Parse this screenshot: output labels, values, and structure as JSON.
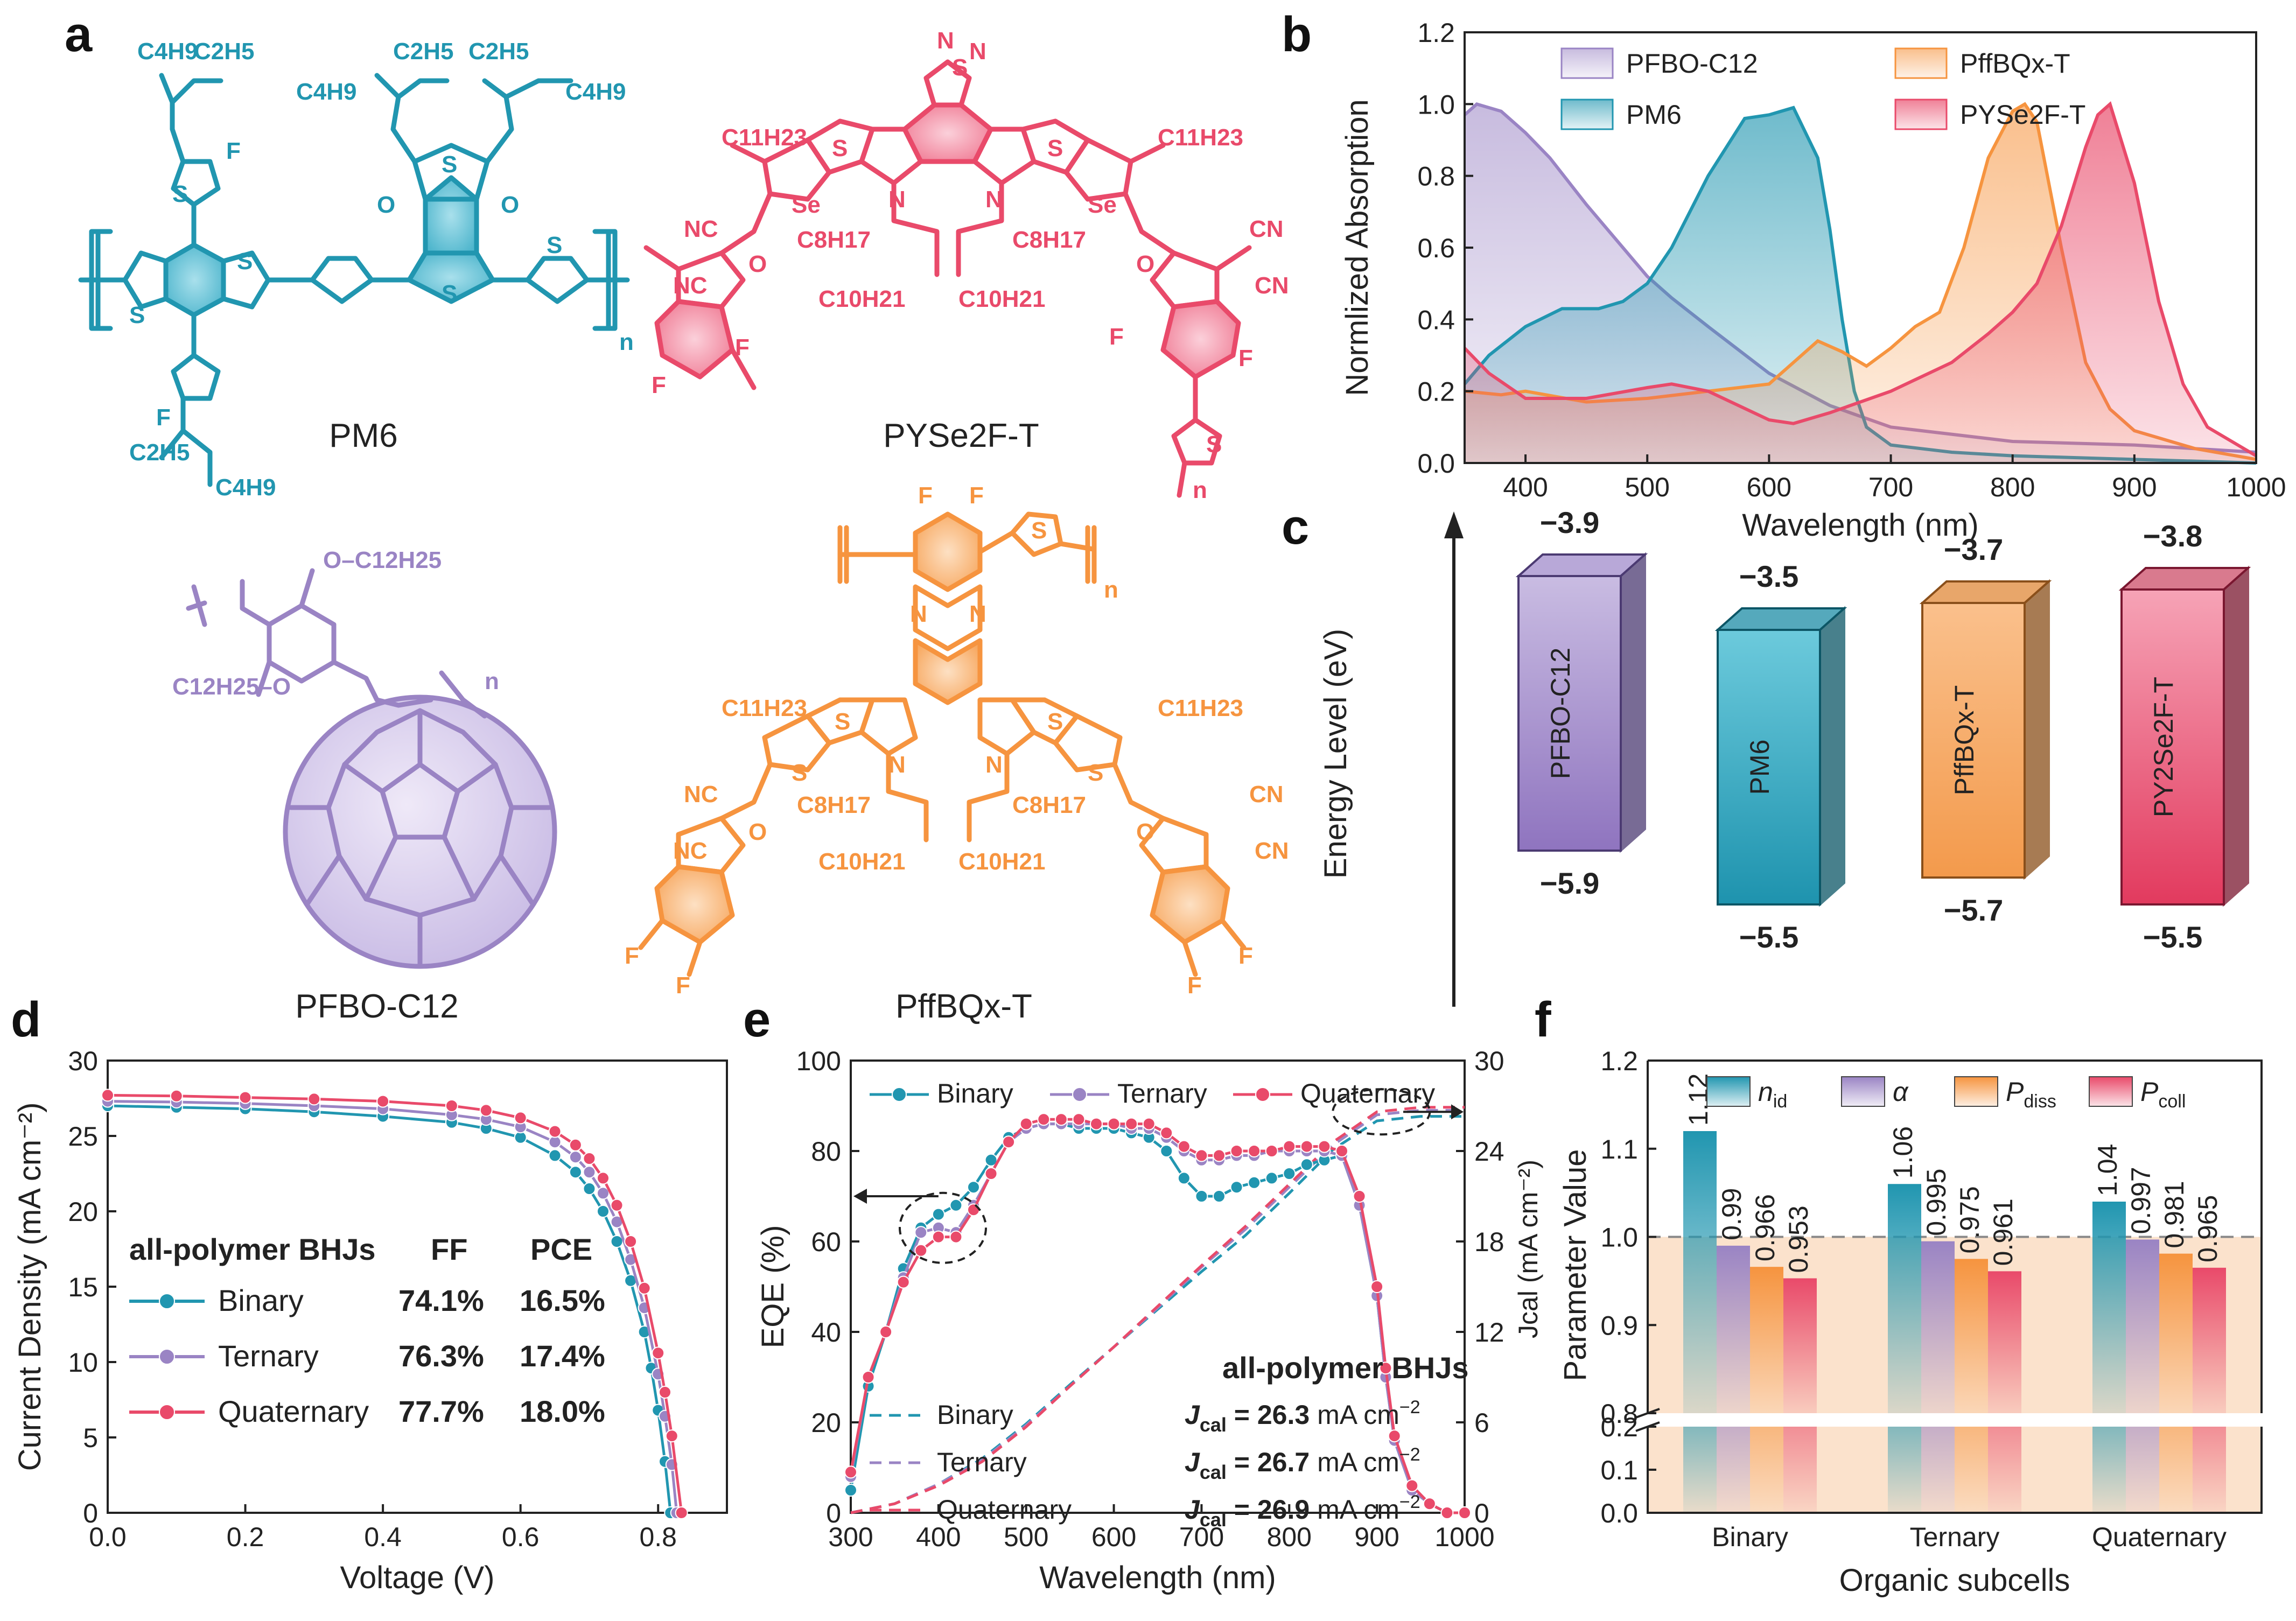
{
  "colors": {
    "pm6": "#2196B0",
    "pyse2f": "#E94A6A",
    "pffbqx": "#F6943F",
    "pfbo": "#9A84C4",
    "text": "#222222"
  },
  "panel_a": {
    "label": "a",
    "names": [
      "PM6",
      "PYSe2F-T",
      "PFBO-C12",
      "PffBQx-T"
    ],
    "pm6_subs": [
      "C4H9",
      "C2H5",
      "C2H5",
      "C2H5",
      "C4H9",
      "C4H9",
      "C2H5",
      "C4H9",
      "F",
      "F",
      "S",
      "S",
      "S",
      "S",
      "S",
      "S",
      "O",
      "O",
      "n"
    ],
    "pyse_subs": [
      "N",
      "S",
      "N",
      "C11H23",
      "C11H23",
      "S",
      "S",
      "Se",
      "Se",
      "N",
      "N",
      "C8H17",
      "C8H17",
      "C10H21",
      "C10H21",
      "NC",
      "NC",
      "CN",
      "CN",
      "O",
      "O",
      "F",
      "F",
      "F",
      "F",
      "S",
      "n"
    ],
    "pfbo_subs": [
      "O–C12H25",
      "C12H25–O",
      "n"
    ],
    "pffbqx_subs": [
      "F",
      "F",
      "S",
      "n",
      "N",
      "N",
      "C11H23",
      "C11H23",
      "S",
      "S",
      "S",
      "S",
      "N",
      "N",
      "C8H17",
      "C8H17",
      "C10H21",
      "C10H21",
      "NC",
      "NC",
      "CN",
      "CN",
      "O",
      "O",
      "F",
      "F",
      "F",
      "F"
    ]
  },
  "chart_data": [
    {
      "panel": "b",
      "type": "area",
      "xlabel": "Wavelength (nm)",
      "ylabel": "Normlized Absorption",
      "xlim": [
        350,
        1000
      ],
      "ylim": [
        0.0,
        1.2
      ],
      "xticks": [
        "400",
        "500",
        "600",
        "700",
        "800",
        "900",
        "1000"
      ],
      "yticks": [
        "0.0",
        "0.2",
        "0.4",
        "0.6",
        "0.8",
        "1.0",
        "1.2"
      ],
      "series": [
        {
          "name": "PFBO-C12",
          "x": [
            350,
            360,
            380,
            400,
            420,
            450,
            480,
            500,
            520,
            550,
            600,
            650,
            700,
            800,
            900,
            1000
          ],
          "y": [
            0.97,
            1.0,
            0.98,
            0.92,
            0.85,
            0.72,
            0.6,
            0.52,
            0.46,
            0.38,
            0.25,
            0.16,
            0.1,
            0.06,
            0.05,
            0.03
          ]
        },
        {
          "name": "PM6",
          "x": [
            350,
            370,
            400,
            430,
            460,
            480,
            500,
            520,
            550,
            580,
            600,
            620,
            640,
            650,
            660,
            670,
            680,
            700,
            750,
            800,
            900,
            1000
          ],
          "y": [
            0.22,
            0.3,
            0.38,
            0.43,
            0.43,
            0.45,
            0.5,
            0.6,
            0.8,
            0.96,
            0.97,
            0.99,
            0.85,
            0.65,
            0.4,
            0.2,
            0.1,
            0.05,
            0.03,
            0.02,
            0.01,
            0.0
          ]
        },
        {
          "name": "PffBQx-T",
          "x": [
            350,
            380,
            400,
            450,
            500,
            550,
            600,
            620,
            640,
            660,
            680,
            700,
            720,
            740,
            760,
            780,
            800,
            810,
            820,
            840,
            860,
            880,
            900,
            950,
            1000
          ],
          "y": [
            0.2,
            0.19,
            0.2,
            0.17,
            0.18,
            0.2,
            0.22,
            0.28,
            0.34,
            0.31,
            0.27,
            0.32,
            0.38,
            0.42,
            0.6,
            0.85,
            0.98,
            1.0,
            0.95,
            0.6,
            0.28,
            0.15,
            0.09,
            0.04,
            0.01
          ]
        },
        {
          "name": "PYSe2F-T",
          "x": [
            350,
            370,
            400,
            450,
            500,
            520,
            550,
            600,
            620,
            650,
            700,
            750,
            780,
            800,
            820,
            840,
            860,
            870,
            880,
            900,
            920,
            940,
            960,
            1000
          ],
          "y": [
            0.32,
            0.25,
            0.18,
            0.18,
            0.21,
            0.22,
            0.2,
            0.12,
            0.11,
            0.14,
            0.2,
            0.28,
            0.36,
            0.42,
            0.5,
            0.66,
            0.88,
            0.97,
            1.0,
            0.78,
            0.45,
            0.22,
            0.1,
            0.02
          ]
        }
      ]
    },
    {
      "panel": "c",
      "type": "bar",
      "ylabel": "Energy Level (eV)",
      "materials": [
        "PFBO-C12",
        "PM6",
        "PffBQx-T",
        "PY2Se2F-T"
      ],
      "lumo": [
        -3.9,
        -3.5,
        -3.7,
        -3.8
      ],
      "homo": [
        -5.9,
        -5.5,
        -5.7,
        -5.5
      ],
      "lumo_labels": [
        "−3.9",
        "−3.5",
        "−3.7",
        "−3.8"
      ],
      "homo_labels": [
        "−5.9",
        "−5.5",
        "−5.7",
        "−5.5"
      ]
    },
    {
      "panel": "d",
      "type": "line",
      "xlabel": "Voltage (V)",
      "ylabel": "Current Density (mA cm⁻²)",
      "xlim": [
        0.0,
        0.9
      ],
      "ylim": [
        0,
        30
      ],
      "xticks": [
        "0.0",
        "0.2",
        "0.4",
        "0.6",
        "0.8"
      ],
      "yticks": [
        "0",
        "5",
        "10",
        "15",
        "20",
        "25",
        "30"
      ],
      "table_title": "all-polymer BHJs",
      "table_headers": [
        "FF",
        "PCE"
      ],
      "series": [
        {
          "name": "Binary",
          "ff": "74.1%",
          "pce": "16.5%",
          "jsc": 27.0,
          "voc": 0.818,
          "x": [
            0,
            0.1,
            0.2,
            0.3,
            0.4,
            0.5,
            0.55,
            0.6,
            0.65,
            0.68,
            0.7,
            0.72,
            0.74,
            0.76,
            0.78,
            0.79,
            0.8,
            0.81,
            0.818
          ],
          "y": [
            27.0,
            26.9,
            26.8,
            26.6,
            26.3,
            25.9,
            25.5,
            24.9,
            23.7,
            22.6,
            21.5,
            20.0,
            18.0,
            15.4,
            12.0,
            9.6,
            6.8,
            3.4,
            0.0
          ]
        },
        {
          "name": "Ternary",
          "ff": "76.3%",
          "pce": "17.4%",
          "jsc": 27.3,
          "voc": 0.827,
          "x": [
            0,
            0.1,
            0.2,
            0.3,
            0.4,
            0.5,
            0.55,
            0.6,
            0.65,
            0.68,
            0.7,
            0.72,
            0.74,
            0.76,
            0.78,
            0.8,
            0.81,
            0.82,
            0.827
          ],
          "y": [
            27.3,
            27.25,
            27.15,
            27.0,
            26.8,
            26.4,
            26.1,
            25.6,
            24.6,
            23.6,
            22.6,
            21.2,
            19.3,
            16.8,
            13.6,
            9.2,
            6.4,
            3.2,
            0.0
          ]
        },
        {
          "name": "Quaternary",
          "ff": "77.7%",
          "pce": "18.0%",
          "jsc": 27.7,
          "voc": 0.834,
          "x": [
            0,
            0.1,
            0.2,
            0.3,
            0.4,
            0.5,
            0.55,
            0.6,
            0.65,
            0.68,
            0.7,
            0.72,
            0.74,
            0.76,
            0.78,
            0.8,
            0.81,
            0.82,
            0.834
          ],
          "y": [
            27.7,
            27.65,
            27.55,
            27.45,
            27.3,
            27.0,
            26.7,
            26.2,
            25.3,
            24.4,
            23.5,
            22.2,
            20.4,
            18.0,
            14.9,
            10.6,
            8.0,
            5.1,
            0.0
          ]
        }
      ]
    },
    {
      "panel": "e",
      "type": "line",
      "xlabel": "Wavelength (nm)",
      "ylabel": "EQE (%)",
      "y2label": "Jcal (mA cm⁻²)",
      "xlim": [
        300,
        1000
      ],
      "ylim": [
        0,
        100
      ],
      "y2lim": [
        0,
        30
      ],
      "xticks": [
        "300",
        "400",
        "500",
        "600",
        "700",
        "800",
        "900",
        "1000"
      ],
      "yticks": [
        "0",
        "20",
        "40",
        "60",
        "80",
        "100"
      ],
      "y2ticks": [
        "0",
        "6",
        "12",
        "18",
        "24",
        "30"
      ],
      "annotation_title": "all-polymer BHJs",
      "jcal_label": "J",
      "jcal_sub": "cal",
      "jcal_unit": "mA cm",
      "jcal_exp": "−2",
      "series": [
        {
          "name": "Binary",
          "jcal": "= 26.3",
          "x": [
            300,
            320,
            340,
            360,
            380,
            400,
            420,
            440,
            460,
            480,
            500,
            520,
            540,
            560,
            580,
            600,
            620,
            640,
            660,
            680,
            700,
            720,
            740,
            760,
            780,
            800,
            820,
            840,
            860,
            880,
            900,
            910,
            920,
            940,
            960,
            980,
            1000
          ],
          "y": [
            5,
            28,
            40,
            54,
            63,
            66,
            68,
            72,
            78,
            83,
            85,
            86,
            86,
            85,
            85,
            85,
            84,
            83,
            80,
            74,
            70,
            70,
            72,
            73,
            74,
            75,
            77,
            78,
            79,
            68,
            48,
            30,
            16,
            5,
            2,
            0,
            0
          ]
        },
        {
          "name": "Ternary",
          "jcal": "= 26.7",
          "x": [
            300,
            320,
            340,
            360,
            380,
            400,
            420,
            440,
            460,
            480,
            500,
            520,
            540,
            560,
            580,
            600,
            620,
            640,
            660,
            680,
            700,
            720,
            740,
            760,
            780,
            800,
            820,
            840,
            860,
            880,
            900,
            910,
            920,
            940,
            960,
            980,
            1000
          ],
          "y": [
            8,
            30,
            40,
            52,
            62,
            63,
            62,
            68,
            75,
            82,
            85,
            86,
            86,
            86,
            86,
            86,
            85,
            85,
            83,
            80,
            78,
            78,
            79,
            79,
            80,
            80,
            80,
            80,
            79,
            68,
            48,
            30,
            16,
            5,
            2,
            0,
            0
          ]
        },
        {
          "name": "Quaternary",
          "jcal": "= 26.9",
          "x": [
            300,
            320,
            340,
            360,
            380,
            400,
            420,
            440,
            460,
            480,
            500,
            520,
            540,
            560,
            580,
            600,
            620,
            640,
            660,
            680,
            700,
            720,
            740,
            760,
            780,
            800,
            820,
            840,
            860,
            880,
            900,
            910,
            920,
            940,
            960,
            980,
            1000
          ],
          "y": [
            9,
            30,
            40,
            51,
            58,
            61,
            61,
            67,
            75,
            82,
            86,
            87,
            87,
            87,
            86,
            86,
            86,
            86,
            84,
            81,
            79,
            79,
            80,
            80,
            80,
            81,
            81,
            81,
            80,
            70,
            50,
            32,
            17,
            6,
            2,
            0,
            0
          ]
        }
      ],
      "jcal_curves": [
        {
          "name": "Binary",
          "x": [
            300,
            350,
            400,
            450,
            500,
            550,
            600,
            650,
            700,
            750,
            800,
            850,
            900,
            950,
            1000
          ],
          "y": [
            0,
            0.6,
            1.9,
            3.6,
            5.9,
            8.5,
            11.0,
            13.5,
            16.0,
            18.4,
            21.2,
            24.1,
            26.0,
            26.3,
            26.3
          ]
        },
        {
          "name": "Ternary",
          "x": [
            300,
            350,
            400,
            450,
            500,
            550,
            600,
            650,
            700,
            750,
            800,
            850,
            900,
            950,
            1000
          ],
          "y": [
            0,
            0.6,
            1.9,
            3.5,
            5.8,
            8.4,
            11.0,
            13.6,
            16.3,
            18.8,
            21.6,
            24.4,
            26.4,
            26.7,
            26.7
          ]
        },
        {
          "name": "Quaternary",
          "x": [
            300,
            350,
            400,
            450,
            500,
            550,
            600,
            650,
            700,
            750,
            800,
            850,
            900,
            950,
            1000
          ],
          "y": [
            0,
            0.6,
            1.8,
            3.4,
            5.7,
            8.4,
            11.0,
            13.7,
            16.4,
            19.0,
            21.8,
            24.6,
            26.6,
            26.9,
            26.9
          ]
        }
      ]
    },
    {
      "panel": "f",
      "type": "bar",
      "xlabel": "Organic subcells",
      "ylabel": "Parameter Value",
      "categories": [
        "Binary",
        "Ternary",
        "Quaternary"
      ],
      "yticks_upper": [
        "0.8",
        "0.9",
        "1.0",
        "1.1",
        "1.2"
      ],
      "yticks_lower": [
        "0.0",
        "0.1",
        "0.2"
      ],
      "reference_line": 1.0,
      "legend": [
        "n_id",
        "α",
        "P_diss",
        "P_coll"
      ],
      "series": [
        {
          "name": "n_id",
          "values": [
            1.12,
            1.06,
            1.04
          ],
          "labels": [
            "1.12",
            "1.06",
            "1.04"
          ]
        },
        {
          "name": "α",
          "values": [
            0.99,
            0.995,
            0.997
          ],
          "labels": [
            "0.99",
            "0.995",
            "0.997"
          ]
        },
        {
          "name": "P_diss",
          "values": [
            0.966,
            0.975,
            0.981
          ],
          "labels": [
            "0.966",
            "0.975",
            "0.981"
          ]
        },
        {
          "name": "P_coll",
          "values": [
            0.953,
            0.961,
            0.965
          ],
          "labels": [
            "0.953",
            "0.961",
            "0.965"
          ]
        }
      ]
    }
  ]
}
